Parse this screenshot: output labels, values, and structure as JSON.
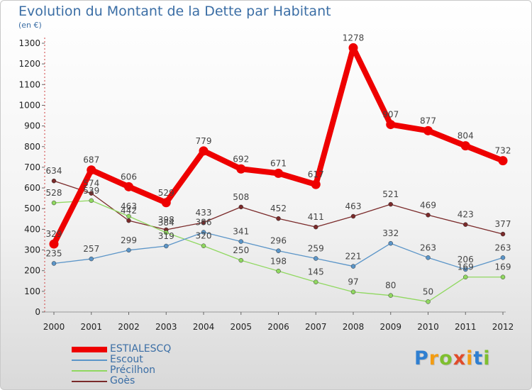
{
  "header": {
    "title": "Evolution du Montant de la Dette par Habitant",
    "subtitle": "(en €)"
  },
  "logo": {
    "letters": [
      "P",
      "r",
      "o",
      "x",
      "i",
      "t",
      "i"
    ],
    "colors": [
      "#2f7fd1",
      "#f39c12",
      "#7fbf2f",
      "#e04b2a",
      "#f39c12",
      "#2f7fd1",
      "#7fbf2f"
    ]
  },
  "chart_data": {
    "type": "line",
    "title": "Evolution du Montant de la Dette par Habitant",
    "subtitle": "(en €)",
    "xlabel": "",
    "ylabel": "",
    "categories": [
      "2000",
      "2001",
      "2002",
      "2003",
      "2004",
      "2005",
      "2006",
      "2007",
      "2008",
      "2009",
      "2010",
      "2011",
      "2012"
    ],
    "ylim": [
      0,
      1300
    ],
    "yticks": [
      0,
      100,
      200,
      300,
      400,
      500,
      600,
      700,
      800,
      900,
      1000,
      1100,
      1200,
      1300
    ],
    "grid": false,
    "legend_position": "bottom-left",
    "series": [
      {
        "name": "ESTIALESCQ",
        "color": "#ee0000",
        "values": [
          329,
          687,
          606,
          529,
          779,
          692,
          671,
          617,
          1278,
          907,
          877,
          804,
          732
        ]
      },
      {
        "name": "Escout",
        "color": "#5b95c8",
        "values": [
          235,
          257,
          299,
          319,
          386,
          341,
          296,
          259,
          221,
          332,
          263,
          206,
          263
        ]
      },
      {
        "name": "Précilhon",
        "color": "#90d860",
        "values": [
          528,
          539,
          463,
          384,
          320,
          250,
          198,
          145,
          97,
          80,
          50,
          169,
          169
        ]
      },
      {
        "name": "Goès",
        "color": "#7a2a2a",
        "values": [
          634,
          574,
          442,
          398,
          433,
          508,
          452,
          411,
          463,
          521,
          469,
          423,
          377
        ]
      }
    ]
  }
}
